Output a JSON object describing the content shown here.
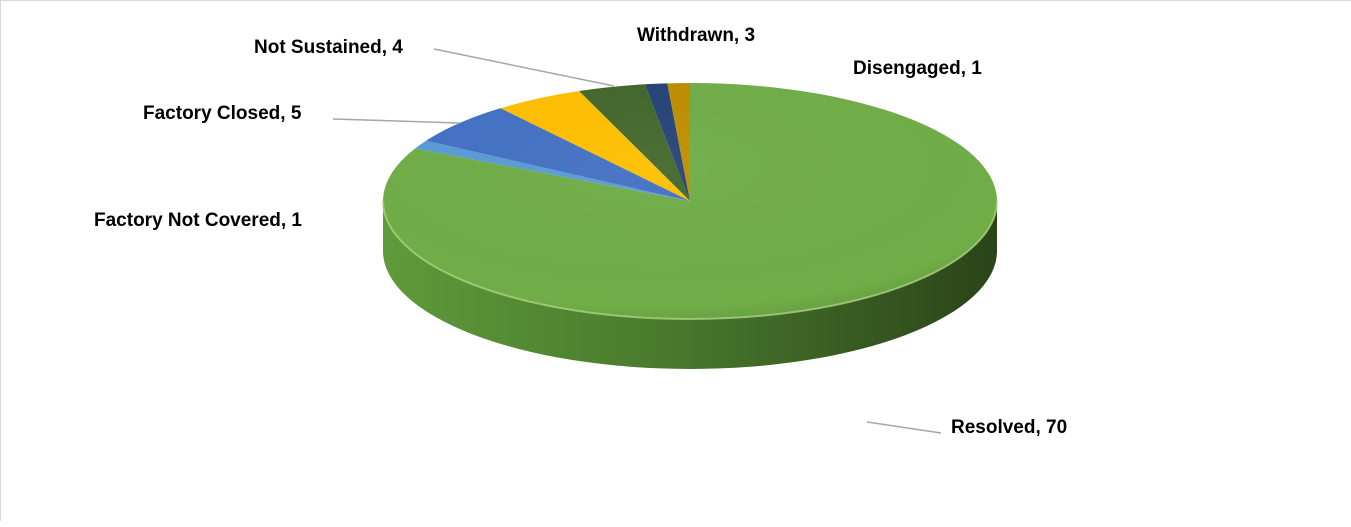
{
  "chart_data": {
    "type": "pie",
    "title": "",
    "style": "3d",
    "slices": [
      {
        "label": "Resolved",
        "value": 70,
        "data_label": "Resolved, 70",
        "color": "#70ad47"
      },
      {
        "label": "Factory Not Covered",
        "value": 1,
        "data_label": "Factory Not Covered, 1",
        "color": "#5b9bd5"
      },
      {
        "label": "Factory Closed",
        "value": 5,
        "data_label": "Factory Closed, 5",
        "color": "#4472c4"
      },
      {
        "label": "Not Sustained",
        "value": 4,
        "data_label": "Not Sustained, 4",
        "color": "#ffc000"
      },
      {
        "label": "Withdrawn",
        "value": 3,
        "data_label": "Withdrawn, 3",
        "color": "#43682b"
      },
      {
        "label": "Disengaged",
        "value": 1,
        "data_label": "Disengaged, 1",
        "color": "#264478"
      },
      {
        "label": "",
        "value": 1,
        "data_label": "",
        "color": "#bf8f00"
      }
    ]
  }
}
